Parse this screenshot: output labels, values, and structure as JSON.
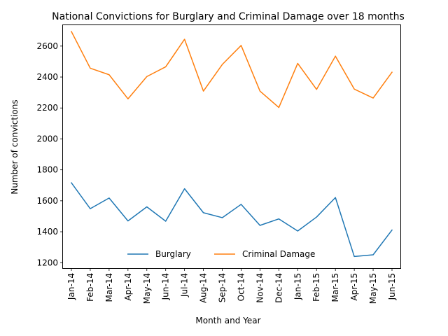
{
  "chart_data": {
    "type": "line",
    "title": "National Convictions for Burglary and Criminal Damage over 18 months",
    "xlabel": "Month and Year",
    "ylabel": "Number of convictions",
    "categories": [
      "Jan-14",
      "Feb-14",
      "Mar-14",
      "Apr-14",
      "May-14",
      "Jun-14",
      "Jul-14",
      "Aug-14",
      "Sep-14",
      "Oct-14",
      "Nov-14",
      "Dec-14",
      "Jan-15",
      "Feb-15",
      "Mar-15",
      "Apr-15",
      "May-15",
      "Jun-15"
    ],
    "ylim": [
      1165,
      2735
    ],
    "yticks": [
      1200,
      1400,
      1600,
      1800,
      2000,
      2200,
      2400,
      2600
    ],
    "grid": false,
    "legend_position": "lower-center",
    "series": [
      {
        "name": "Burglary",
        "color": "#1f77b4",
        "values": [
          1716,
          1549,
          1618,
          1470,
          1561,
          1468,
          1678,
          1523,
          1491,
          1577,
          1441,
          1483,
          1405,
          1495,
          1621,
          1240,
          1251,
          1411
        ]
      },
      {
        "name": "Criminal Damage",
        "color": "#ff7f0e",
        "values": [
          2694,
          2457,
          2415,
          2259,
          2403,
          2466,
          2644,
          2309,
          2481,
          2604,
          2309,
          2203,
          2488,
          2320,
          2535,
          2322,
          2264,
          2431
        ]
      }
    ]
  }
}
